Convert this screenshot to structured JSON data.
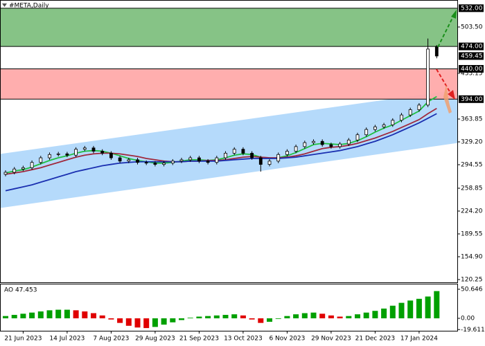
{
  "chart_data": {
    "type": "candlestick",
    "title": "#META,Daily",
    "categories": [
      null,
      null,
      "21 Jun 2023",
      null,
      null,
      null,
      null,
      "14 Jul 2023",
      null,
      null,
      null,
      null,
      "7 Aug 2023",
      null,
      null,
      null,
      null,
      "29 Aug 2023",
      null,
      null,
      null,
      null,
      "21 Sep 2023",
      null,
      null,
      null,
      null,
      "13 Oct 2023",
      null,
      null,
      null,
      null,
      "6 Nov 2023",
      null,
      null,
      null,
      null,
      "29 Nov 2023",
      null,
      null,
      null,
      null,
      "21 Dec 2023",
      null,
      null,
      null,
      null,
      "17 Jan 2024",
      null,
      null
    ],
    "open": [
      280,
      283,
      288,
      290,
      298,
      305,
      310,
      311,
      309,
      318,
      320,
      315,
      312,
      305,
      300,
      302,
      298,
      297,
      295,
      297,
      300,
      302,
      305,
      300,
      298,
      305,
      312,
      318,
      312,
      305,
      295,
      300,
      310,
      315,
      322,
      328,
      330,
      325,
      322,
      326,
      332,
      340,
      348,
      352,
      355,
      362,
      370,
      378,
      385,
      474
    ],
    "high": [
      286,
      291,
      293,
      301,
      308,
      313,
      314,
      314,
      321,
      323,
      323,
      318,
      315,
      308,
      305,
      305,
      301,
      300,
      300,
      303,
      305,
      308,
      308,
      303,
      308,
      315,
      321,
      321,
      315,
      308,
      303,
      313,
      318,
      325,
      331,
      333,
      333,
      328,
      329,
      335,
      343,
      351,
      355,
      358,
      365,
      373,
      381,
      388,
      486,
      476
    ],
    "low": [
      277,
      280,
      285,
      287,
      295,
      302,
      307,
      306,
      306,
      315,
      312,
      309,
      302,
      297,
      297,
      295,
      294,
      292,
      292,
      294,
      297,
      299,
      297,
      295,
      295,
      302,
      309,
      309,
      302,
      284,
      292,
      297,
      307,
      312,
      319,
      325,
      322,
      319,
      319,
      323,
      329,
      337,
      345,
      349,
      352,
      359,
      367,
      375,
      382,
      456
    ],
    "close": [
      283,
      288,
      290,
      298,
      305,
      310,
      311,
      309,
      318,
      320,
      315,
      312,
      305,
      300,
      302,
      298,
      297,
      295,
      297,
      300,
      302,
      305,
      300,
      298,
      305,
      312,
      318,
      312,
      305,
      295,
      300,
      310,
      315,
      322,
      328,
      330,
      325,
      322,
      326,
      332,
      340,
      348,
      352,
      355,
      362,
      370,
      378,
      385,
      470,
      459.45
    ],
    "up_color": "#ffffff",
    "down_color": "#000000",
    "moving_averages": [
      {
        "color": "#1fbf3f",
        "values": [
          282,
          285,
          287,
          291,
          296,
          301,
          305,
          308,
          312,
          315,
          316,
          315,
          312,
          308,
          304,
          301,
          299,
          297,
          297,
          298,
          300,
          302,
          302,
          301,
          302,
          305,
          309,
          311,
          310,
          306,
          304,
          305,
          308,
          313,
          319,
          325,
          327,
          326,
          325,
          327,
          331,
          337,
          344,
          350,
          355,
          362,
          369,
          376,
          390,
          398
        ]
      },
      {
        "color": "#a0283c",
        "values": [
          280,
          282,
          284,
          287,
          290,
          294,
          298,
          302,
          306,
          309,
          311,
          312,
          312,
          311,
          309,
          307,
          304,
          302,
          300,
          299,
          299,
          300,
          300,
          301,
          301,
          302,
          304,
          306,
          307,
          306,
          305,
          305,
          306,
          308,
          311,
          315,
          319,
          321,
          322,
          324,
          327,
          331,
          335,
          340,
          345,
          351,
          357,
          363,
          372,
          380
        ]
      },
      {
        "color": "#1a2fb0",
        "values": [
          255,
          258,
          261,
          264,
          268,
          272,
          276,
          280,
          284,
          287,
          290,
          293,
          295,
          297,
          298,
          299,
          299,
          299,
          299,
          299,
          299,
          300,
          300,
          300,
          300,
          301,
          302,
          303,
          304,
          304,
          304,
          304,
          305,
          306,
          308,
          310,
          312,
          314,
          316,
          319,
          322,
          326,
          330,
          335,
          340,
          346,
          352,
          358,
          365,
          372
        ]
      }
    ],
    "channel": {
      "upper": [
        312,
        404
      ],
      "lower": [
        230,
        323
      ],
      "color": "#a8d4fa"
    },
    "zones": [
      {
        "from": 474,
        "to": 532,
        "color": "#80c080"
      },
      {
        "from": 394,
        "to": 440,
        "color": "#ffaaaa"
      }
    ],
    "ylim": [
      116.05,
      544.45
    ],
    "yticks": [
      {
        "value": 120.25,
        "label": "120.25"
      },
      {
        "value": 154.9,
        "label": "154.90"
      },
      {
        "value": 189.55,
        "label": "189.55"
      },
      {
        "value": 224.2,
        "label": "224.20"
      },
      {
        "value": 258.85,
        "label": "258.85"
      },
      {
        "value": 294.55,
        "label": "294.55"
      },
      {
        "value": 329.2,
        "label": "329.20"
      },
      {
        "value": 363.85,
        "label": "363.85"
      },
      {
        "value": 433.15,
        "label": "433.15"
      },
      {
        "value": 503.5,
        "label": "503.50"
      }
    ],
    "price_labels": [
      {
        "value": 532,
        "label": "532.00"
      },
      {
        "value": 474,
        "label": "474.00"
      },
      {
        "value": 459.45,
        "label": "459.45"
      },
      {
        "value": 440,
        "label": "440.00"
      },
      {
        "value": 394,
        "label": "394.00"
      }
    ],
    "oscillator": {
      "label": "AO 47.453",
      "up_color": "#00a000",
      "down_color": "#e00000",
      "values": [
        4,
        6,
        8,
        10,
        12,
        14,
        15,
        15,
        14,
        12,
        9,
        5,
        -2,
        -8,
        -13,
        -16,
        -17,
        -15,
        -11,
        -7,
        -3,
        1,
        3,
        4,
        5,
        6,
        7,
        5,
        -2,
        -8,
        -6,
        -1,
        4,
        7,
        9,
        10,
        8,
        5,
        3,
        4,
        7,
        10,
        13,
        17,
        22,
        27,
        31,
        34,
        38,
        47.453
      ],
      "ylim": [
        -21.7,
        60.3
      ],
      "yticks": [
        {
          "value": 50.646,
          "label": "50.646"
        },
        {
          "value": 0,
          "label": "0.00"
        },
        {
          "value": -19.611,
          "label": "-19.611"
        }
      ]
    }
  }
}
